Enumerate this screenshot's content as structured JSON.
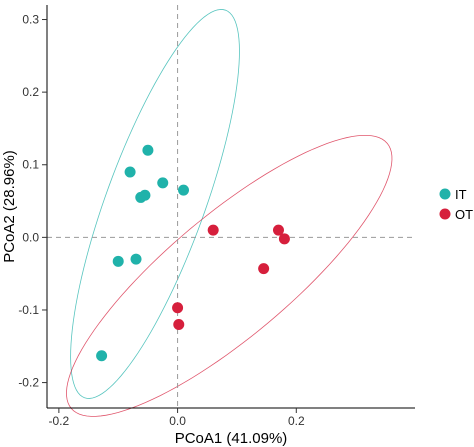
{
  "chart_data": {
    "type": "scatter",
    "title": "",
    "xlabel": "PCoA1 (41.09%)",
    "ylabel": "PCoA2 (28.96%)",
    "xlim": [
      -0.22,
      0.4
    ],
    "ylim": [
      -0.235,
      0.32
    ],
    "xticks": [
      -0.2,
      0.0,
      0.2
    ],
    "xtick_labels": [
      "-0.2",
      "0.0",
      "0.2"
    ],
    "yticks": [
      -0.2,
      -0.1,
      0.0,
      0.1,
      0.2,
      0.3
    ],
    "ytick_labels": [
      "-0.2",
      "-0.1",
      "0.0",
      "0.1",
      "0.2",
      "0.3"
    ],
    "grid": false,
    "reference_lines": {
      "x": 0,
      "y": 0,
      "style": "dashed"
    },
    "legend_position": "right",
    "series": [
      {
        "name": "IT",
        "color": "#20B2AA",
        "x": [
          -0.05,
          -0.08,
          -0.025,
          -0.055,
          -0.062,
          0.01,
          -0.1,
          -0.07,
          -0.128
        ],
        "y": [
          0.12,
          0.09,
          0.075,
          0.058,
          0.055,
          0.065,
          -0.033,
          -0.03,
          -0.163
        ],
        "ellipse": {
          "cx": -0.038,
          "cy": 0.046,
          "rx": 0.284,
          "ry": 0.068,
          "angle_deg": 70
        }
      },
      {
        "name": "OT",
        "color": "#D61F3C",
        "x": [
          0.06,
          0.17,
          0.18,
          0.145,
          0.0,
          0.002
        ],
        "y": [
          0.01,
          0.01,
          -0.002,
          -0.043,
          -0.097,
          -0.12
        ],
        "ellipse": {
          "cx": 0.087,
          "cy": -0.053,
          "rx": 0.284,
          "ry": 0.084,
          "angle_deg": 40
        }
      }
    ]
  }
}
